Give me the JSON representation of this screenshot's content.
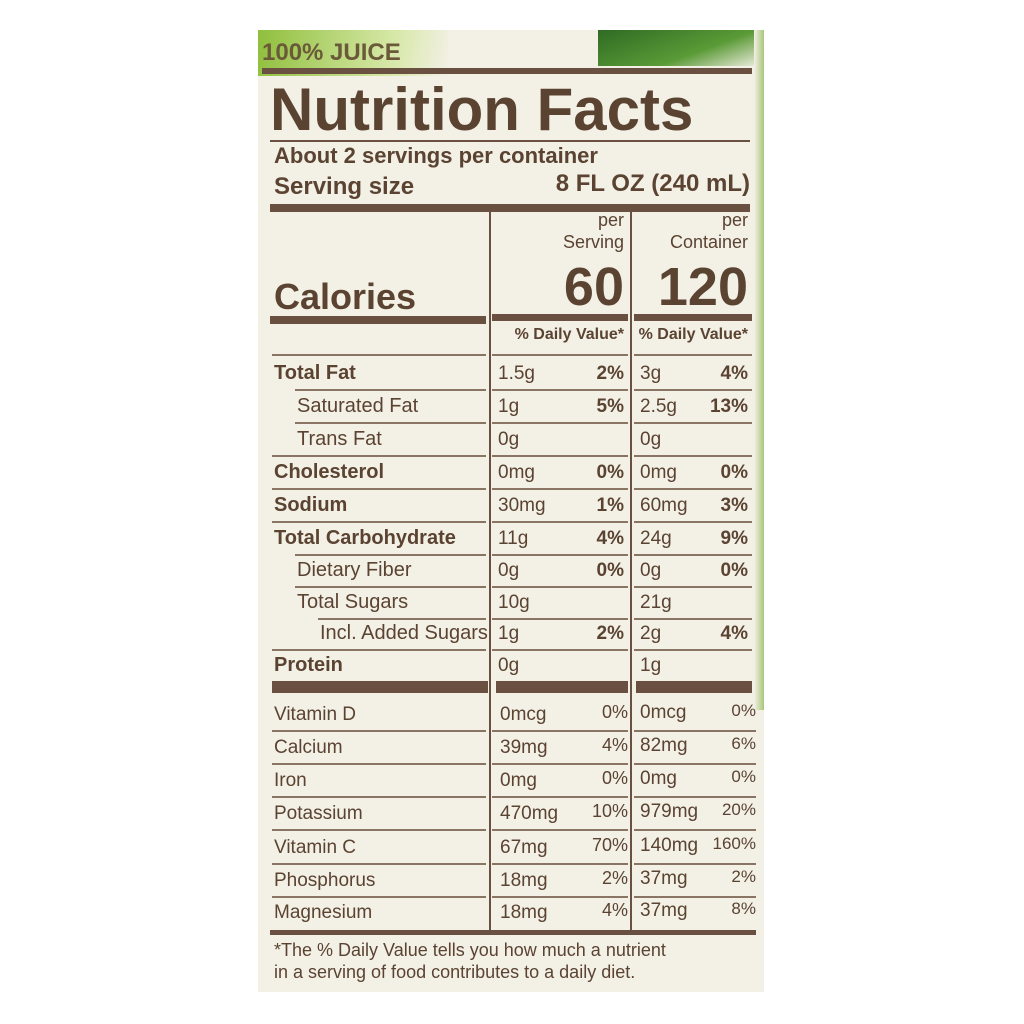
{
  "header": {
    "badge": "100% JUICE",
    "title": "Nutrition Facts",
    "servings": "About 2 servings per container",
    "serving_size_label": "Serving size",
    "serving_size_value": "8 FL OZ (240 mL)"
  },
  "columns": [
    {
      "line1": "per",
      "line2": "Serving",
      "calories": "60",
      "dv_header": "% Daily Value*"
    },
    {
      "line1": "per",
      "line2": "Container",
      "calories": "120",
      "dv_header": "% Daily Value*"
    }
  ],
  "calories_label": "Calories",
  "rows": [
    {
      "name": "Total Fat",
      "serving": [
        "1.5g",
        "2%"
      ],
      "container": [
        "3g",
        "4%"
      ]
    },
    {
      "name": "Saturated Fat",
      "serving": [
        "1g",
        "5%"
      ],
      "container": [
        "2.5g",
        "13%"
      ]
    },
    {
      "name": "Trans Fat",
      "serving": [
        "0g",
        null
      ],
      "container": [
        "0g",
        null
      ]
    },
    {
      "name": "Cholesterol",
      "serving": [
        "0mg",
        "0%"
      ],
      "container": [
        "0mg",
        "0%"
      ]
    },
    {
      "name": "Sodium",
      "serving": [
        "30mg",
        "1%"
      ],
      "container": [
        "60mg",
        "3%"
      ]
    },
    {
      "name": "Total Carbohydrate",
      "serving": [
        "11g",
        "4%"
      ],
      "container": [
        "24g",
        "9%"
      ]
    },
    {
      "name": "Dietary Fiber",
      "serving": [
        "0g",
        "0%"
      ],
      "container": [
        "0g",
        "0%"
      ]
    },
    {
      "name": "Total Sugars",
      "serving": [
        "10g",
        null
      ],
      "container": [
        "21g",
        null
      ]
    },
    {
      "name": "Incl. Added Sugars",
      "serving": [
        "1g",
        "2%"
      ],
      "container": [
        "2g",
        "4%"
      ]
    },
    {
      "name": "Protein",
      "serving": [
        "0g",
        null
      ],
      "container": [
        "1g",
        null
      ]
    }
  ],
  "micros": [
    {
      "name": "Vitamin D",
      "serving": [
        "0mcg",
        "0%"
      ],
      "container": [
        "0mcg",
        "0%"
      ]
    },
    {
      "name": "Calcium",
      "serving": [
        "39mg",
        "4%"
      ],
      "container": [
        "82mg",
        "6%"
      ]
    },
    {
      "name": "Iron",
      "serving": [
        "0mg",
        "0%"
      ],
      "container": [
        "0mg",
        "0%"
      ]
    },
    {
      "name": "Potassium",
      "serving": [
        "470mg",
        "10%"
      ],
      "container": [
        "979mg",
        "20%"
      ]
    },
    {
      "name": "Vitamin C",
      "serving": [
        "67mg",
        "70%"
      ],
      "container": [
        "140mg",
        "160%"
      ]
    },
    {
      "name": "Phosphorus",
      "serving": [
        "18mg",
        "2%"
      ],
      "container": [
        "37mg",
        "2%"
      ]
    },
    {
      "name": "Magnesium",
      "serving": [
        "18mg",
        "4%"
      ],
      "container": [
        "37mg",
        "8%"
      ]
    }
  ],
  "footnote": [
    "*The % Daily Value tells you how much a nutrient",
    "in a serving of food contributes to a daily diet."
  ]
}
